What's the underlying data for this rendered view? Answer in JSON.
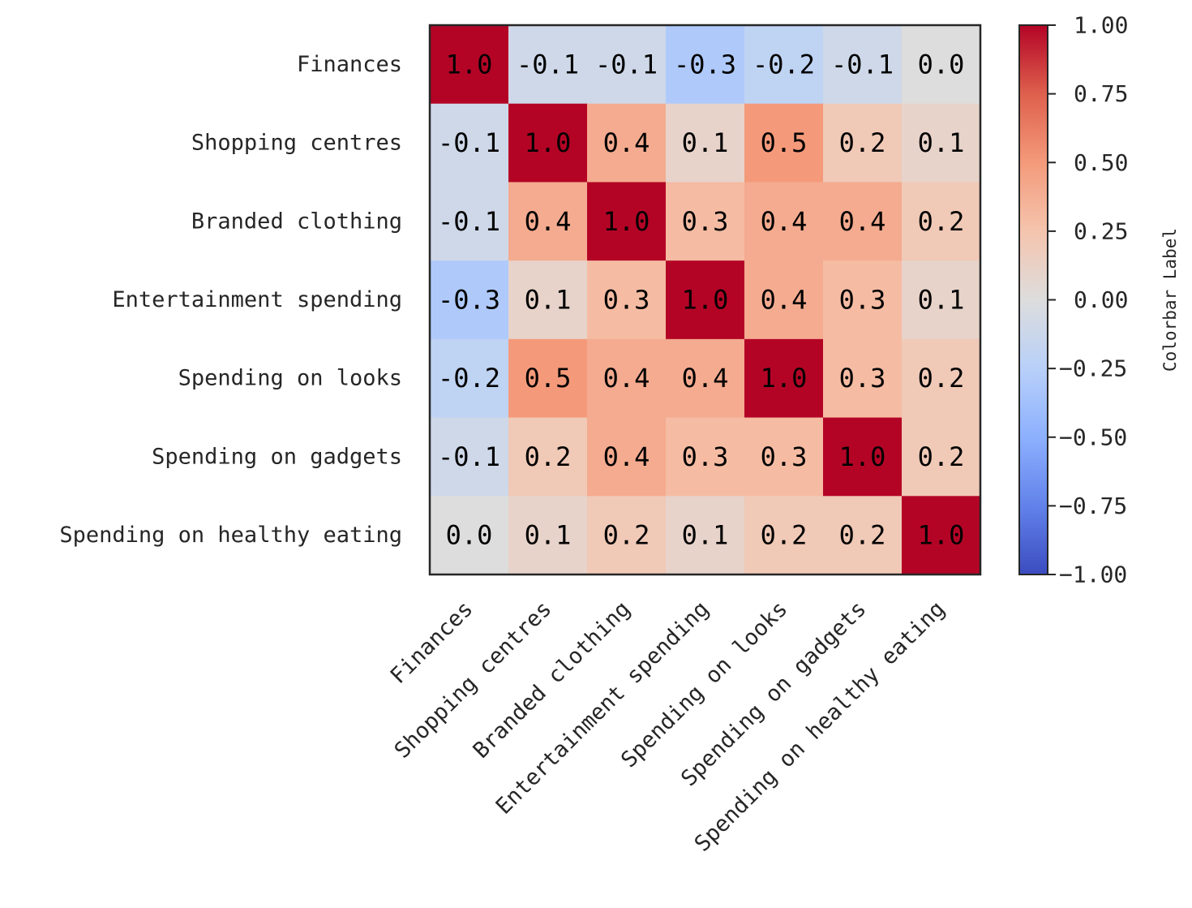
{
  "chart_data": {
    "type": "heatmap",
    "categories": [
      "Finances",
      "Shopping centres",
      "Branded clothing",
      "Entertainment spending",
      "Spending on looks",
      "Spending on gadgets",
      "Spending on healthy eating"
    ],
    "values": [
      [
        1.0,
        -0.1,
        -0.1,
        -0.3,
        -0.2,
        -0.1,
        0.0
      ],
      [
        -0.1,
        1.0,
        0.4,
        0.1,
        0.5,
        0.2,
        0.1
      ],
      [
        -0.1,
        0.4,
        1.0,
        0.3,
        0.4,
        0.4,
        0.2
      ],
      [
        -0.3,
        0.1,
        0.3,
        1.0,
        0.4,
        0.3,
        0.1
      ],
      [
        -0.2,
        0.5,
        0.4,
        0.4,
        1.0,
        0.3,
        0.2
      ],
      [
        -0.1,
        0.2,
        0.4,
        0.3,
        0.3,
        1.0,
        0.2
      ],
      [
        0.0,
        0.1,
        0.2,
        0.1,
        0.2,
        0.2,
        1.0
      ]
    ],
    "colormap": "coolwarm",
    "vmin": -1.0,
    "vmax": 1.0,
    "colorbar": {
      "label": "Colorbar Label",
      "ticks": [
        "1.00",
        "0.75",
        "0.50",
        "0.25",
        "0.00",
        "−0.25",
        "−0.50",
        "−0.75",
        "−1.00"
      ],
      "tick_values": [
        1.0,
        0.75,
        0.5,
        0.25,
        0.0,
        -0.25,
        -0.5,
        -0.75,
        -1.0
      ],
      "position": "right"
    },
    "xtick_rotation": 45,
    "grid": false
  }
}
